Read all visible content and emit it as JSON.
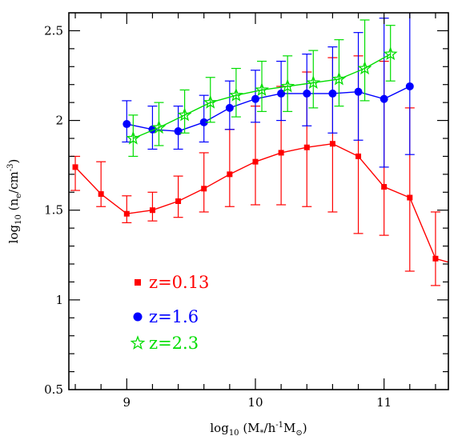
{
  "chart_data": {
    "type": "line",
    "xlabel": "log10 (M*/h-1M⊙)",
    "ylabel": "log10 (ne/cm-3)",
    "xlabel_parts": {
      "lead": "log",
      "sub": "10",
      "mid": " (M",
      "sub2": "*",
      "tail": "/h",
      "sup": "-1",
      "tail2": "M",
      "sub3": "⊙",
      "close": ")"
    },
    "ylabel_parts": {
      "lead": "log",
      "sub": "10",
      "mid": " (n",
      "sub2": "e",
      "tail": "/cm",
      "sup": "-3",
      "close": ")"
    },
    "xlim": [
      8.55,
      11.5
    ],
    "ylim": [
      0.5,
      2.6
    ],
    "xticks": [
      {
        "value": 9,
        "label": "9"
      },
      {
        "value": 10,
        "label": "10"
      },
      {
        "value": 11,
        "label": "11"
      }
    ],
    "yticks": [
      {
        "value": 0.5,
        "label": "0.5"
      },
      {
        "value": 1,
        "label": "1"
      },
      {
        "value": 1.5,
        "label": "1.5"
      },
      {
        "value": 2,
        "label": "2"
      },
      {
        "value": 2.5,
        "label": "2.5"
      }
    ],
    "legend_position": "bottom-left",
    "grid": false,
    "series": [
      {
        "name": "z=0.13",
        "color": "#ff0000",
        "marker": "square",
        "x": [
          8.6,
          8.8,
          9.0,
          9.2,
          9.4,
          9.6,
          9.8,
          10.0,
          10.2,
          10.4,
          10.6,
          10.8,
          11.0,
          11.2,
          11.4,
          11.5
        ],
        "y": [
          1.74,
          1.59,
          1.48,
          1.5,
          1.55,
          1.62,
          1.7,
          1.77,
          1.82,
          1.85,
          1.87,
          1.8,
          1.63,
          1.57,
          1.23,
          1.21
        ],
        "err_low": [
          0.13,
          0.07,
          0.05,
          0.06,
          0.09,
          0.13,
          0.18,
          0.24,
          0.29,
          0.33,
          0.38,
          0.43,
          0.27,
          0.41,
          0.15,
          null
        ],
        "err_high": [
          0.06,
          0.18,
          0.1,
          0.1,
          0.14,
          0.2,
          0.25,
          0.31,
          0.37,
          0.42,
          0.48,
          0.56,
          0.7,
          0.5,
          0.26,
          null
        ]
      },
      {
        "name": "z=1.6",
        "color": "#0000ff",
        "marker": "circle",
        "x": [
          9.0,
          9.2,
          9.4,
          9.6,
          9.8,
          10.0,
          10.2,
          10.4,
          10.6,
          10.8,
          11.0,
          11.2
        ],
        "y": [
          1.98,
          1.95,
          1.94,
          1.99,
          2.07,
          2.12,
          2.15,
          2.15,
          2.15,
          2.16,
          2.12,
          2.19
        ],
        "err_low": [
          0.1,
          0.11,
          0.1,
          0.11,
          0.12,
          0.13,
          0.15,
          0.18,
          0.22,
          0.27,
          0.38,
          0.38
        ],
        "err_high": [
          0.13,
          0.13,
          0.14,
          0.15,
          0.15,
          0.16,
          0.18,
          0.22,
          0.26,
          0.33,
          0.45,
          0.45
        ]
      },
      {
        "name": "z=2.3",
        "color": "#00dd00",
        "marker": "star",
        "x": [
          9.05,
          9.25,
          9.45,
          9.65,
          9.85,
          10.05,
          10.25,
          10.45,
          10.65,
          10.85,
          11.05
        ],
        "y": [
          1.9,
          1.96,
          2.03,
          2.1,
          2.14,
          2.17,
          2.19,
          2.21,
          2.23,
          2.29,
          2.37
        ],
        "err_low": [
          0.1,
          0.1,
          0.1,
          0.11,
          0.12,
          0.12,
          0.14,
          0.14,
          0.15,
          0.18,
          0.15
        ],
        "err_high": [
          0.13,
          0.14,
          0.14,
          0.14,
          0.15,
          0.16,
          0.17,
          0.18,
          0.22,
          0.27,
          0.16
        ]
      }
    ]
  }
}
